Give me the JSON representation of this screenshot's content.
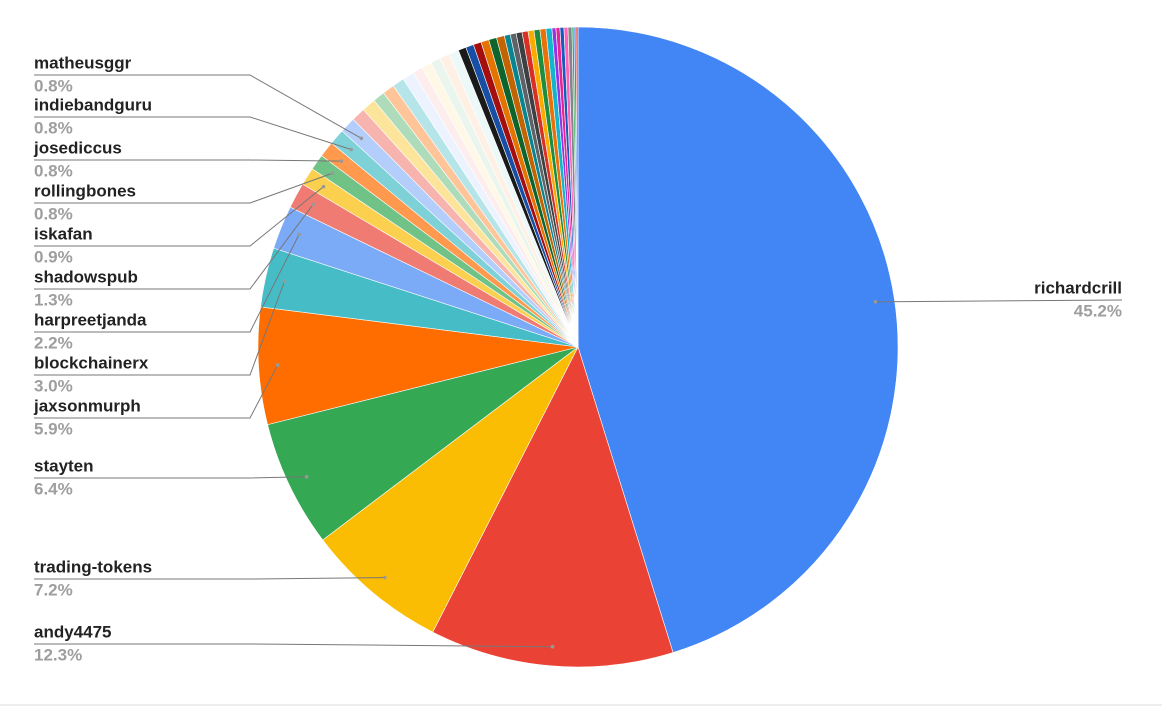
{
  "chart_data": {
    "type": "pie",
    "categories": [
      "richardcrill",
      "andy4475",
      "trading-tokens",
      "stayten",
      "jaxsonmurph",
      "blockchainerx",
      "harpreetjanda",
      "shadowspub",
      "iskafan",
      "rollingbones",
      "josediccus",
      "indiebandguru",
      "matheusggr",
      null,
      null,
      null,
      null,
      null,
      null,
      null,
      null,
      null,
      null,
      null,
      null,
      null,
      null,
      null,
      null,
      null,
      null,
      null,
      null,
      null,
      null,
      null,
      null,
      null,
      null,
      null,
      null,
      null,
      null,
      null,
      null,
      null
    ],
    "values": [
      45.2,
      12.3,
      7.2,
      6.4,
      5.9,
      3.0,
      2.2,
      1.3,
      0.9,
      0.8,
      0.8,
      0.8,
      0.8,
      0.7,
      0.7,
      0.6,
      0.6,
      0.6,
      0.6,
      0.5,
      0.5,
      0.5,
      0.5,
      0.5,
      0.4,
      0.4,
      0.4,
      0.4,
      0.4,
      0.4,
      0.3,
      0.3,
      0.3,
      0.3,
      0.3,
      0.3,
      0.3,
      0.3,
      0.2,
      0.2,
      0.2,
      0.2,
      0.2,
      0.1,
      0.1,
      0.1
    ],
    "value_labels": [
      "45.2%",
      "12.3%",
      "7.2%",
      "6.4%",
      "5.9%",
      "3.0%",
      "2.2%",
      "1.3%",
      "0.9%",
      "0.8%",
      "0.8%",
      "0.8%",
      "0.8%",
      null,
      null,
      null,
      null,
      null,
      null,
      null,
      null,
      null,
      null,
      null,
      null,
      null,
      null,
      null,
      null,
      null,
      null,
      null,
      null,
      null,
      null,
      null,
      null,
      null,
      null,
      null,
      null,
      null,
      null,
      null,
      null,
      null
    ],
    "colors": [
      "#4285f4",
      "#ea4335",
      "#fbbc04",
      "#34a853",
      "#ff6d01",
      "#46bdc6",
      "#7baaf7",
      "#f07b72",
      "#fcd04f",
      "#71c287",
      "#ff994d",
      "#7ed1d7",
      "#b3cefb",
      "#f7b4ae",
      "#fde49b",
      "#aedcba",
      "#ffc599",
      "#b5e5e8",
      "#ecf3fe",
      "#fdeded",
      "#fff8e6",
      "#eaf6ed",
      "#fff0e6",
      "#edf8f9",
      "#1a1a1a",
      "#174ea6",
      "#a50e0e",
      "#e37400",
      "#0d652d",
      "#c26401",
      "#098591",
      "#5f6368",
      "#3c4043",
      "#d93025",
      "#f9ab00",
      "#1e8e3e",
      "#e8710a",
      "#12b5cb",
      "#9334e6",
      "#e52592",
      "#185abc",
      "#ff63b8",
      "#80868b",
      "#34a853",
      "#4285f4",
      "#ea4335"
    ]
  }
}
